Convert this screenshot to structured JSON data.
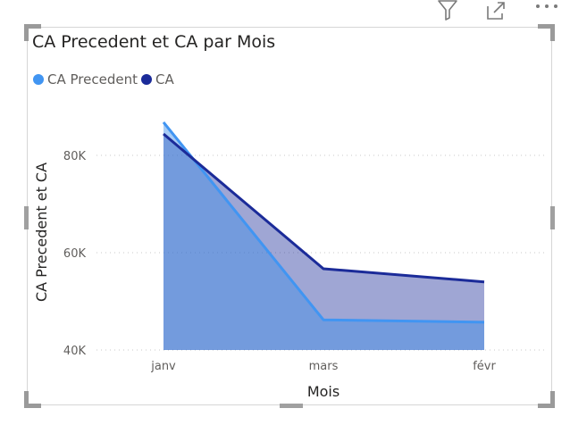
{
  "header_icons": [
    "filter-icon",
    "focus-mode-icon",
    "more-options-icon"
  ],
  "visual": {
    "title": "CA Precedent et CA par Mois"
  },
  "chart_data": {
    "type": "area",
    "title": "CA Precedent et CA par Mois",
    "categories": [
      "janv",
      "mars",
      "févr"
    ],
    "series": [
      {
        "name": "CA Precedent",
        "values": [
          86800,
          46200,
          45700
        ],
        "color": "#4195f2"
      },
      {
        "name": "CA",
        "values": [
          84400,
          56700,
          54000
        ],
        "color": "#1b2b99"
      }
    ],
    "xlabel": "Mois",
    "ylabel": "CA Precedent et CA",
    "ylim": [
      40000,
      88000
    ],
    "yticks": [
      {
        "value": 40000,
        "label": "40K"
      },
      {
        "value": 60000,
        "label": "60K"
      },
      {
        "value": 80000,
        "label": "80K"
      }
    ],
    "grid": true,
    "legend": "top-left"
  }
}
